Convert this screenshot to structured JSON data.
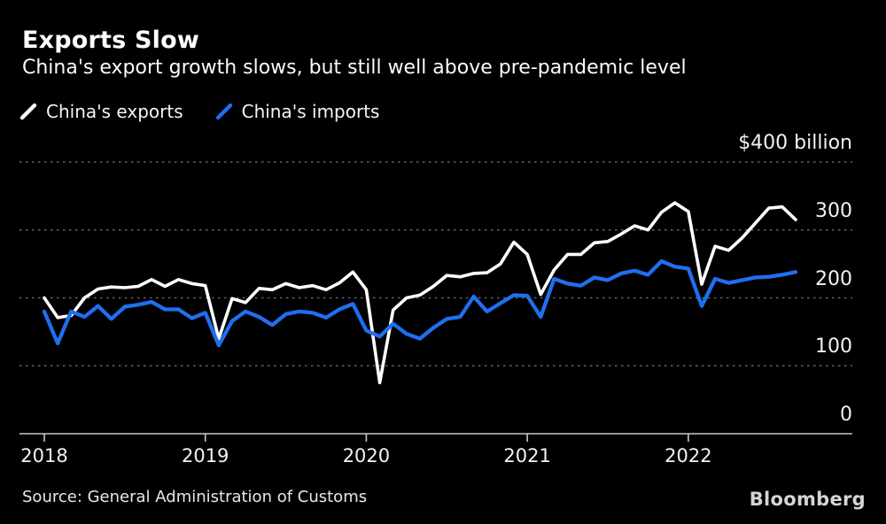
{
  "header": {
    "title": "Exports Slow",
    "subtitle": "China's export growth slows, but still well above pre-pandemic level"
  },
  "legend": [
    {
      "label": "China's exports",
      "color": "#ffffff"
    },
    {
      "label": "China's imports",
      "color": "#1f6ff0"
    }
  ],
  "footer": {
    "source": "Source: General Administration of Customs",
    "brand": "Bloomberg"
  },
  "colors": {
    "background": "#000000",
    "exports_line": "#ffffff",
    "imports_line": "#1f6ff0",
    "gridline": "#646464",
    "baseline": "#c9c9c9",
    "text": "#f2f2f2"
  },
  "chart_data": {
    "type": "line",
    "title": "Exports Slow",
    "subtitle": "China's export growth slows, but still well above pre-pandemic level",
    "unit": "$ billion, monthly",
    "x_start": "2018-01",
    "x_end": "2022-09",
    "frequency": "monthly",
    "x_ticks": [
      "2018",
      "2019",
      "2020",
      "2021",
      "2022"
    ],
    "y_ticks": [
      "$400 billion",
      "300",
      "200",
      "100",
      "0"
    ],
    "y_tick_values": [
      400,
      300,
      200,
      100,
      0
    ],
    "ylim": [
      0,
      430
    ],
    "grid": "horizontal dotted",
    "legend_position": "top-left",
    "series": [
      {
        "name": "China's exports",
        "color": "#ffffff",
        "values": [
          200,
          171,
          174,
          200,
          213,
          216,
          215,
          217,
          227,
          217,
          227,
          221,
          218,
          140,
          199,
          193,
          214,
          212,
          221,
          215,
          218,
          212,
          222,
          238,
          212,
          75,
          182,
          200,
          204,
          217,
          233,
          231,
          236,
          237,
          250,
          282,
          264,
          205,
          241,
          264,
          264,
          281,
          283,
          294,
          306,
          300,
          326,
          340,
          327,
          220,
          276,
          270,
          288,
          310,
          332,
          334,
          315
        ]
      },
      {
        "name": "China's imports",
        "color": "#1f6ff0",
        "values": [
          180,
          133,
          180,
          172,
          188,
          169,
          187,
          190,
          194,
          183,
          183,
          170,
          178,
          130,
          166,
          180,
          172,
          160,
          176,
          180,
          178,
          171,
          183,
          191,
          152,
          143,
          162,
          147,
          140,
          156,
          169,
          172,
          202,
          180,
          192,
          204,
          203,
          172,
          228,
          221,
          218,
          230,
          226,
          236,
          240,
          234,
          254,
          246,
          243,
          188,
          228,
          222,
          226,
          230,
          231,
          234,
          238
        ]
      }
    ]
  }
}
